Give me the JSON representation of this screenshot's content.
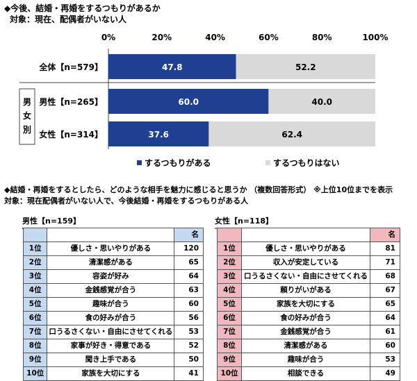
{
  "section1": {
    "title": "◆今後、結婚・再婚をするつもりがあるか",
    "subtitle": "対象：現在、配偶者がいない人",
    "group_label": [
      "男",
      "女",
      "別"
    ]
  },
  "chart_data": {
    "type": "bar",
    "stacked": true,
    "orientation": "horizontal",
    "categories": [
      "全体【n=579】",
      "男性【n=265】",
      "女性【n=314】"
    ],
    "series": [
      {
        "name": "するつもりがある",
        "values": [
          47.8,
          60.0,
          37.6
        ],
        "color": "#1f3f93"
      },
      {
        "name": "するつもりはない",
        "values": [
          52.2,
          40.0,
          62.4
        ],
        "color": "#d9d9d9"
      }
    ],
    "xlim": [
      0,
      100
    ],
    "xticks": [
      "0%",
      "20%",
      "40%",
      "60%",
      "80%",
      "100%"
    ],
    "legend_position": "bottom"
  },
  "section2": {
    "title": "◆結婚・再婚をするとしたら、どのような相手を魅力に感じると思うか （複数回答形式） ※上位10位までを表示",
    "subtitle": "対象：現在配偶者がいない人で、今後結婚・再婚をするつもりがある人"
  },
  "male_table": {
    "label": "男性【n=159】",
    "header": "名",
    "rows": [
      {
        "rank": "1位",
        "item": "優しさ・思いやりがある",
        "count": "120"
      },
      {
        "rank": "2位",
        "item": "清潔感がある",
        "count": "65"
      },
      {
        "rank": "3位",
        "item": "容姿が好み",
        "count": "64"
      },
      {
        "rank": "4位",
        "item": "金銭感覚が合う",
        "count": "63"
      },
      {
        "rank": "5位",
        "item": "趣味が合う",
        "count": "60"
      },
      {
        "rank": "6位",
        "item": "食の好みが合う",
        "count": "56"
      },
      {
        "rank": "7位",
        "item": "口うるさくない・自由にさせてくれる",
        "count": "53"
      },
      {
        "rank": "8位",
        "item": "家事が好き・得意である",
        "count": "52"
      },
      {
        "rank": "9位",
        "item": "聞き上手である",
        "count": "50"
      },
      {
        "rank": "10位",
        "item": "家族を大切にする",
        "count": "41"
      }
    ]
  },
  "female_table": {
    "label": "女性【n=118】",
    "header": "名",
    "rows": [
      {
        "rank": "1位",
        "item": "優しさ・思いやりがある",
        "count": "81"
      },
      {
        "rank": "2位",
        "item": "収入が安定している",
        "count": "71"
      },
      {
        "rank": "3位",
        "item": "口うるさくない・自由にさせてくれる",
        "count": "68"
      },
      {
        "rank": "4位",
        "item": "頼りがいがある",
        "count": "67"
      },
      {
        "rank": "5位",
        "item": "家族を大切にする",
        "count": "65"
      },
      {
        "rank": "6位",
        "item": "食の好みが合う",
        "count": "64"
      },
      {
        "rank": "7位",
        "item": "金銭感覚が合う",
        "count": "61"
      },
      {
        "rank": "8位",
        "item": "清潔感がある",
        "count": "60"
      },
      {
        "rank": "9位",
        "item": "趣味が合う",
        "count": "53"
      },
      {
        "rank": "10位",
        "item": "相談できる",
        "count": "49"
      }
    ]
  }
}
